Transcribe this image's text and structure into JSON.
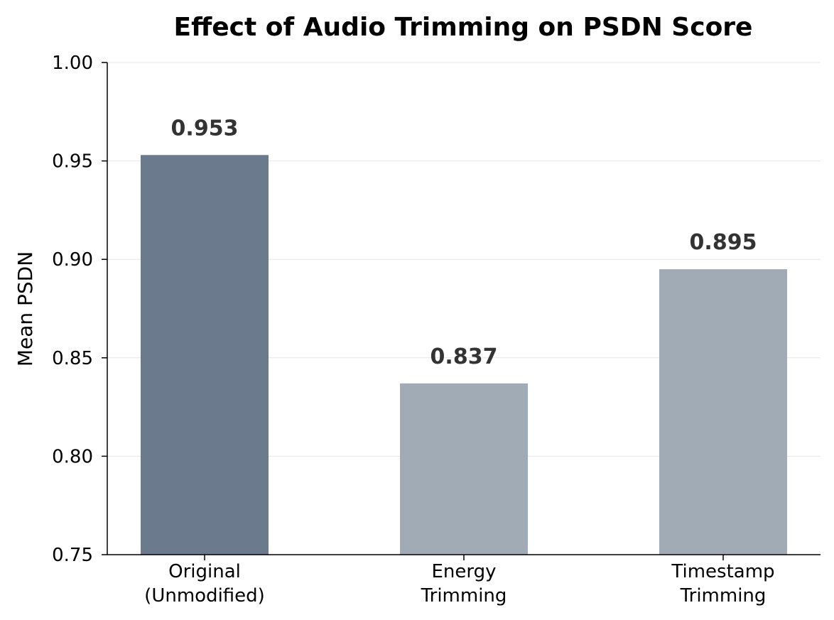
{
  "chart_data": {
    "type": "bar",
    "title": "Effect of Audio Trimming on PSDN Score",
    "xlabel": "",
    "ylabel": "Mean PSDN",
    "ylim": [
      0.75,
      1.0
    ],
    "yticks": [
      "0.75",
      "0.80",
      "0.85",
      "0.90",
      "0.95",
      "1.00"
    ],
    "categories": [
      [
        "Original",
        "(Unmodified)"
      ],
      [
        "Energy",
        "Trimming"
      ],
      [
        "Timestamp",
        "Trimming"
      ]
    ],
    "values": [
      0.953,
      0.837,
      0.895
    ],
    "value_labels": [
      "0.953",
      "0.837",
      "0.895"
    ],
    "bar_colors": [
      "#6b7a8d",
      "#a0abb6",
      "#a0abb6"
    ],
    "grid": true,
    "legend": "none"
  }
}
